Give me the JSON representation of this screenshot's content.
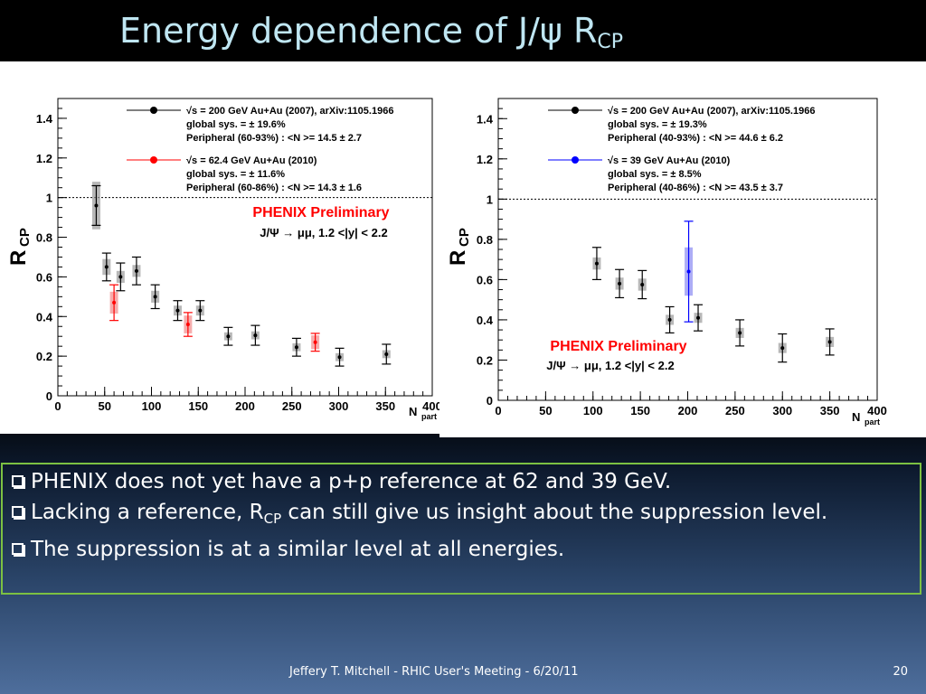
{
  "slide": {
    "title_main": "Energy dependence of J/ψ R",
    "title_sub": "CP",
    "footer": "Jeffery T. Mitchell - RHIC User's Meeting  - 6/20/11",
    "page_number": "20"
  },
  "bullets": [
    {
      "pre": "PHENIX does not yet have a p+p reference at 62 and 39 GeV.",
      "sub": "",
      "post": ""
    },
    {
      "pre": "Lacking a reference, R",
      "sub": "CP",
      "post": " can still give us insight about the suppression level."
    },
    {
      "pre": "The suppression is at a similar level at all energies.",
      "sub": "",
      "post": ""
    }
  ],
  "colors": {
    "title_text": "#bfe6f2",
    "box_border": "#7cc142",
    "series_200": "#000000",
    "series_62": "#ff0000",
    "series_39": "#0000ff",
    "preliminary": "#ff0000"
  },
  "chart_data": [
    {
      "type": "scatter",
      "xlabel": "N",
      "xlabel_sub": "part",
      "ylabel": "R",
      "ylabel_sub": "CP",
      "xlim": [
        0,
        400
      ],
      "ylim": [
        0,
        1.5
      ],
      "xticks": [
        0,
        50,
        100,
        150,
        200,
        250,
        300,
        350,
        400
      ],
      "yticks": [
        0,
        0.2,
        0.4,
        0.6,
        0.8,
        1,
        1.2,
        1.4
      ],
      "reference_line": 1,
      "preliminary_label": "PHENIX Preliminary",
      "channel_label": "J/Ψ → μμ, 1.2 <|y| < 2.2",
      "legend": [
        {
          "series": 0,
          "lines": [
            "√s    = 200 GeV Au+Au (2007), arXiv:1105.1966",
            "global sys. = ± 19.6%",
            "Peripheral (60-93%) : <N     >= 14.5 ± 2.7"
          ]
        },
        {
          "series": 1,
          "lines": [
            "√s    = 62.4 GeV Au+Au (2010)",
            "global sys. = ± 11.6%",
            "Peripheral (60-86%) : <N     >= 14.3 ± 1.6"
          ]
        }
      ],
      "series": [
        {
          "name": "200 GeV Au+Au (2007)",
          "color": "#000000",
          "points": [
            {
              "x": 41,
              "y": 0.96,
              "err": 0.1,
              "sys": 0.12
            },
            {
              "x": 52,
              "y": 0.65,
              "err": 0.07,
              "sys": 0.04
            },
            {
              "x": 67,
              "y": 0.6,
              "err": 0.07,
              "sys": 0.03
            },
            {
              "x": 84,
              "y": 0.63,
              "err": 0.07,
              "sys": 0.03
            },
            {
              "x": 104,
              "y": 0.5,
              "err": 0.06,
              "sys": 0.03
            },
            {
              "x": 128,
              "y": 0.43,
              "err": 0.05,
              "sys": 0.025
            },
            {
              "x": 152,
              "y": 0.43,
              "err": 0.05,
              "sys": 0.025
            },
            {
              "x": 182,
              "y": 0.3,
              "err": 0.045,
              "sys": 0.02
            },
            {
              "x": 211,
              "y": 0.305,
              "err": 0.05,
              "sys": 0.02
            },
            {
              "x": 255,
              "y": 0.245,
              "err": 0.045,
              "sys": 0.02
            },
            {
              "x": 301,
              "y": 0.195,
              "err": 0.045,
              "sys": 0.02
            },
            {
              "x": 351,
              "y": 0.21,
              "err": 0.05,
              "sys": 0.02
            }
          ]
        },
        {
          "name": "62.4 GeV Au+Au (2010)",
          "color": "#ff0000",
          "points": [
            {
              "x": 60,
              "y": 0.47,
              "err": 0.09,
              "sys": 0.055
            },
            {
              "x": 139,
              "y": 0.36,
              "err": 0.06,
              "sys": 0.045
            },
            {
              "x": 275,
              "y": 0.27,
              "err": 0.045,
              "sys": 0.035
            }
          ]
        }
      ]
    },
    {
      "type": "scatter",
      "xlabel": "N",
      "xlabel_sub": "part",
      "ylabel": "R",
      "ylabel_sub": "CP",
      "xlim": [
        0,
        400
      ],
      "ylim": [
        0,
        1.5
      ],
      "xticks": [
        0,
        50,
        100,
        150,
        200,
        250,
        300,
        350,
        400
      ],
      "yticks": [
        0,
        0.2,
        0.4,
        0.6,
        0.8,
        1,
        1.2,
        1.4
      ],
      "reference_line": 1,
      "preliminary_label": "PHENIX Preliminary",
      "channel_label": "J/Ψ → μμ, 1.2 <|y| < 2.2",
      "legend": [
        {
          "series": 0,
          "lines": [
            "√s    = 200 GeV Au+Au (2007), arXiv:1105.1966",
            "global sys. = ± 19.3%",
            "Peripheral (40-93%) : <N     >= 44.6 ± 6.2"
          ]
        },
        {
          "series": 1,
          "lines": [
            "√s    = 39 GeV Au+Au (2010)",
            "global sys. = ±  8.5%",
            "Peripheral (40-86%) : <N     >= 43.5 ± 3.7"
          ]
        }
      ],
      "series": [
        {
          "name": "200 GeV Au+Au (2007)",
          "color": "#000000",
          "points": [
            {
              "x": 104,
              "y": 0.68,
              "err": 0.08,
              "sys": 0.03
            },
            {
              "x": 128,
              "y": 0.58,
              "err": 0.07,
              "sys": 0.03
            },
            {
              "x": 152,
              "y": 0.575,
              "err": 0.07,
              "sys": 0.03
            },
            {
              "x": 181,
              "y": 0.4,
              "err": 0.065,
              "sys": 0.025
            },
            {
              "x": 211,
              "y": 0.41,
              "err": 0.065,
              "sys": 0.025
            },
            {
              "x": 255,
              "y": 0.335,
              "err": 0.065,
              "sys": 0.025
            },
            {
              "x": 300,
              "y": 0.26,
              "err": 0.07,
              "sys": 0.025
            },
            {
              "x": 350,
              "y": 0.29,
              "err": 0.065,
              "sys": 0.025
            }
          ]
        },
        {
          "name": "39 GeV Au+Au (2010)",
          "color": "#0000ff",
          "points": [
            {
              "x": 201,
              "y": 0.64,
              "err": 0.25,
              "sys": 0.12
            }
          ]
        }
      ]
    }
  ]
}
